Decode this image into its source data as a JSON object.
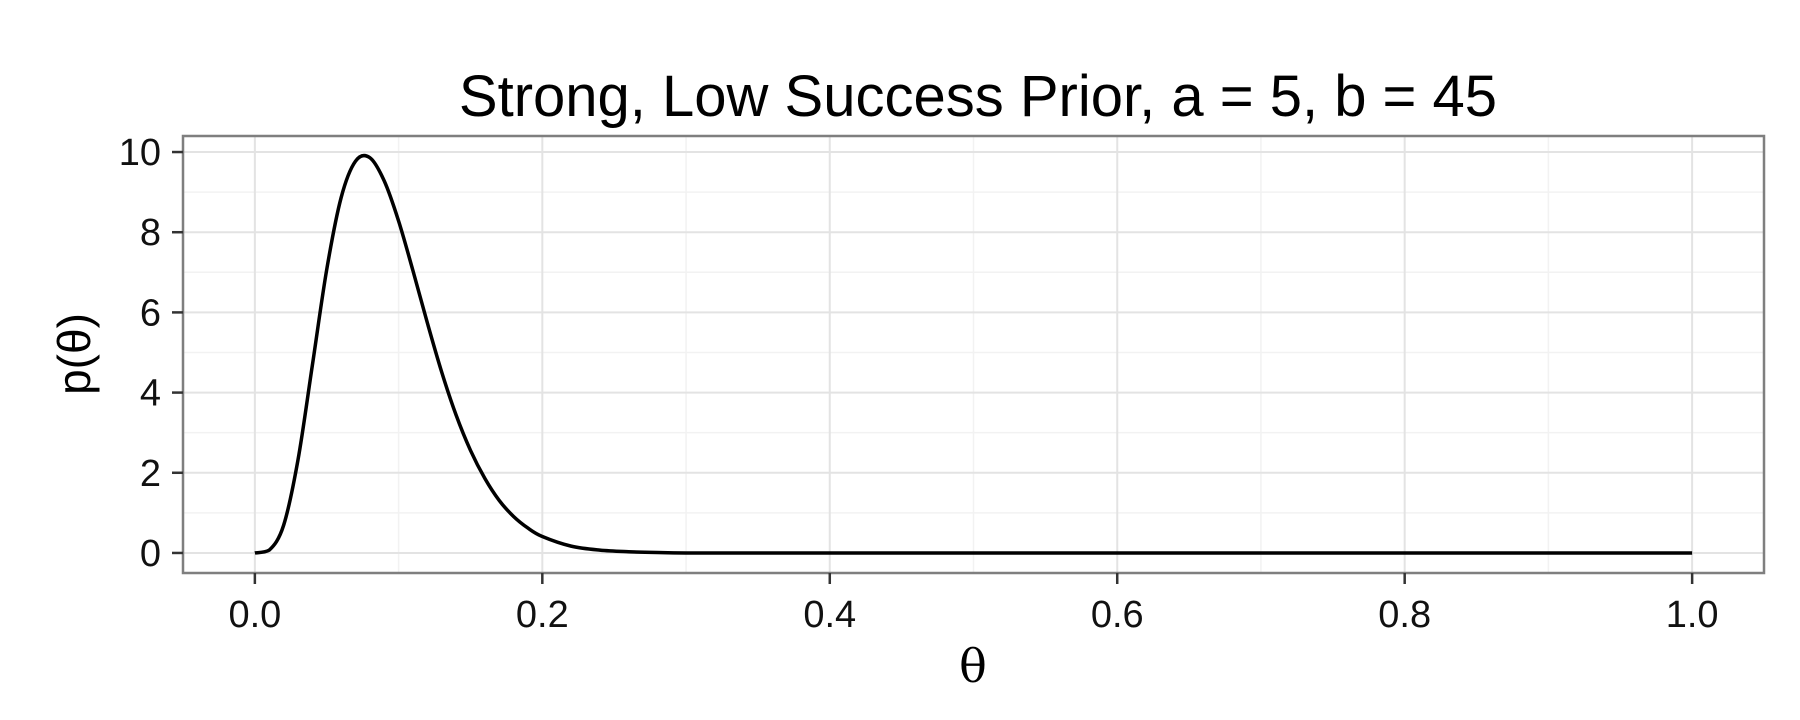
{
  "chart_data": {
    "type": "line",
    "title": "Strong, Low Success Prior, a = 5, b = 45",
    "xlabel": "θ",
    "ylabel": "p(θ)",
    "xlim": [
      -0.05,
      1.05
    ],
    "ylim": [
      -0.5,
      10.4
    ],
    "x_ticks": [
      0.0,
      0.2,
      0.4,
      0.6,
      0.8,
      1.0
    ],
    "x_tick_labels": [
      "0.0",
      "0.2",
      "0.4",
      "0.6",
      "0.8",
      "1.0"
    ],
    "y_ticks": [
      0,
      2,
      4,
      6,
      8,
      10
    ],
    "y_tick_labels": [
      "0",
      "2",
      "4",
      "6",
      "8",
      "10"
    ],
    "grid": true,
    "legend": "none",
    "series": [
      {
        "line_color": "#000000",
        "x": [
          0.0,
          0.01,
          0.02,
          0.03,
          0.04,
          0.05,
          0.06,
          0.07,
          0.08,
          0.09,
          0.1,
          0.11,
          0.12,
          0.13,
          0.14,
          0.15,
          0.16,
          0.17,
          0.18,
          0.19,
          0.2,
          0.22,
          0.24,
          0.26,
          0.28,
          0.3,
          0.35,
          0.4,
          0.5,
          0.6,
          0.7,
          0.8,
          0.9,
          1.0
        ],
        "y": [
          0.0,
          0.07,
          0.69,
          2.32,
          4.68,
          7.07,
          8.86,
          9.77,
          9.86,
          9.28,
          8.28,
          7.04,
          5.74,
          4.51,
          3.44,
          2.56,
          1.86,
          1.31,
          0.91,
          0.62,
          0.41,
          0.17,
          0.07,
          0.03,
          0.01,
          0.0,
          0.0,
          0.0,
          0.0,
          0.0,
          0.0,
          0.0,
          0.0,
          0.0
        ]
      }
    ]
  }
}
